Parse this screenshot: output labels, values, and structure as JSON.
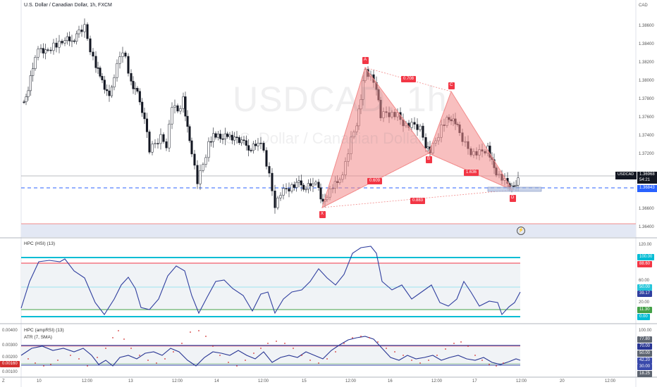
{
  "header": {
    "symbol_title": "U.S. Dollar / Canadian Dollar, 1h, FXCM",
    "currency": "CAD"
  },
  "watermark": {
    "symbol": "USDCAD, 1h",
    "name": "U.S. Dollar / Canadian Dollar"
  },
  "price_axis": {
    "labels": [
      "1.38600",
      "1.38400",
      "1.38200",
      "1.38000",
      "1.37800",
      "1.37600",
      "1.37400",
      "1.37200",
      "1.36600",
      "1.36400"
    ],
    "current_tag": {
      "symbol": "USDCAD",
      "price": "1.36968",
      "countdown": "54:21",
      "color": "#131722"
    },
    "level_tag": {
      "price": "1.36843",
      "color": "#2962ff"
    }
  },
  "pattern": {
    "points": [
      "X",
      "A",
      "B",
      "C",
      "D"
    ],
    "ratios": {
      "xb": "0.609",
      "ac": "0.708",
      "bd": "1.636",
      "xd": "0.883"
    },
    "fill_color": "#f28b8b",
    "label_color": "#f23645"
  },
  "hsi_pane": {
    "title": "HPC (HSI) (13)",
    "axis_labels": [
      "120.00",
      "60.00",
      "40.00",
      "20.00"
    ],
    "tags": [
      {
        "text": "100.00",
        "color": "#00bcd4"
      },
      {
        "text": "88.60",
        "color": "#f23645"
      },
      {
        "text": "50.00",
        "color": "#26c6da"
      },
      {
        "text": "39.17",
        "color": "#303f9f"
      },
      {
        "text": "11.30",
        "color": "#43a047"
      },
      {
        "text": "0.00",
        "color": "#00bcd4"
      }
    ]
  },
  "amp_pane": {
    "title1": "HPC (ampRSI) (13)",
    "title2": "ATR (7, SMA)",
    "left_labels": [
      "0.00400",
      "0.00300",
      "0.00200",
      "0.00100"
    ],
    "left_tag": {
      "text": "0.00160",
      "color": "#d32f2f"
    },
    "right_labels": [
      "100.00"
    ],
    "tags": [
      {
        "text": "77.80",
        "color": "#5d6470"
      },
      {
        "text": "70.00",
        "color": "#283593"
      },
      {
        "text": "50.00",
        "color": "#5d6470"
      },
      {
        "text": "42.20",
        "color": "#3949ab"
      },
      {
        "text": "30.00",
        "color": "#3949ab"
      },
      {
        "text": "18.25",
        "color": "#5d6470"
      }
    ]
  },
  "time_axis": {
    "corner": "Z",
    "labels": [
      "10",
      "12:00",
      "13",
      "12:00",
      "14",
      "12:00",
      "15",
      "12:00",
      "16",
      "12:00",
      "17",
      "12:00",
      "20",
      "12:00"
    ]
  },
  "icons": {
    "lightning": "lightning-icon"
  }
}
